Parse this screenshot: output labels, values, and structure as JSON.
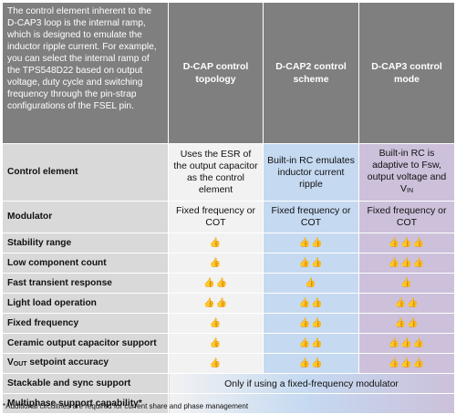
{
  "intro_text": "The control element inherent to the D-CAP3 loop is the internal ramp, which is designed to emulate the inductor ripple current. For example, you can select the internal ramp of the TPS548D22 based on output voltage, duty cycle and switching frequency through the pin-strap configurations of the FSEL pin.",
  "columns": [
    "D-CAP control topology",
    "D-CAP2 control scheme",
    "D-CAP3 control mode"
  ],
  "control_element": {
    "label": "Control element",
    "values": [
      "Uses the ESR of the output capacitor as the control element",
      "Built-in RC emulates inductor current ripple",
      "Built-in RC is adaptive to Fsw, output voltage and V"
    ],
    "vin_sub": "IN"
  },
  "modulator": {
    "label": "Modulator",
    "values": [
      "Fixed frequency or COT",
      "Fixed frequency or COT",
      "Fixed frequency or COT"
    ]
  },
  "rating_rows": [
    {
      "label": "Stability range",
      "values": [
        "👍",
        "👍👍",
        "👍👍👍"
      ]
    },
    {
      "label": "Low component count",
      "values": [
        "👍",
        "👍👍",
        "👍👍👍"
      ]
    },
    {
      "label": "Fast transient response",
      "values": [
        "👍👍",
        "👍",
        "👍"
      ]
    },
    {
      "label": "Light load operation",
      "values": [
        "👍👍",
        "👍👍",
        "👍👍"
      ]
    },
    {
      "label": "Fixed frequency",
      "values": [
        "👍",
        "👍👍",
        "👍👍"
      ]
    },
    {
      "label": "Ceramic output capacitor support",
      "values": [
        "👍",
        "👍👍",
        "👍👍👍"
      ]
    }
  ],
  "vout_row": {
    "label_prefix": "V",
    "label_sub": "OUT",
    "label_suffix": " setpoint accuracy",
    "values": [
      "👍",
      "👍👍",
      "👍👍👍"
    ]
  },
  "stackable_row": {
    "label": "Stackable and sync support",
    "value": "Only if using a fixed-frequency modulator"
  },
  "multiphase_row": {
    "label": "Multiphase support capability*"
  },
  "footnote": "*Additional circuitries are required for current share and phase management",
  "colors": {
    "header_bg": "#7f7f7f",
    "rowhead_bg": "#d9d9d9",
    "dcap_bg": "#f2f2f2",
    "dcap2_bg": "#c5d9f1",
    "dcap3_bg": "#ccc0da"
  }
}
